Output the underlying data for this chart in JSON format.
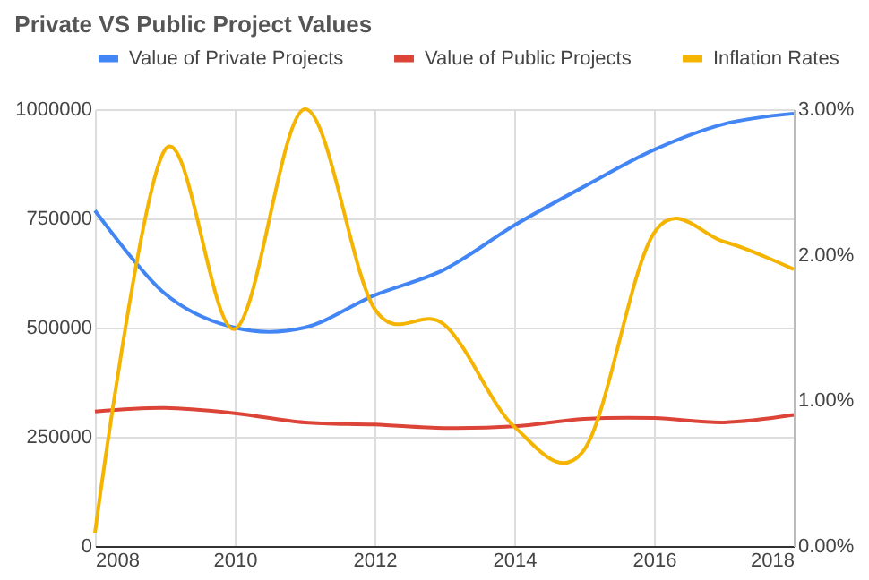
{
  "chart_data": {
    "type": "line",
    "title": "Private VS Public Project Values",
    "x": [
      2008,
      2009,
      2010,
      2011,
      2012,
      2013,
      2014,
      2015,
      2016,
      2017,
      2018
    ],
    "series": [
      {
        "name": "Value of Private Projects",
        "color": "#4285f4",
        "values": [
          768000,
          578000,
          500000,
          500000,
          574000,
          633000,
          734000,
          823000,
          907000,
          966000,
          990000
        ]
      },
      {
        "name": "Value of Public Projects",
        "color": "#db4437",
        "values": [
          308000,
          316000,
          304000,
          283000,
          278000,
          270000,
          274000,
          291000,
          293000,
          283000,
          300000
        ]
      },
      {
        "name": "Inflation Rates",
        "color": "#f4b400",
        "axis": "y2",
        "values": [
          0.09,
          2.72,
          1.49,
          3.0,
          1.63,
          1.52,
          0.82,
          0.66,
          2.15,
          2.09,
          1.9
        ]
      }
    ],
    "xlim": [
      2008,
      2018
    ],
    "xticks": [
      2008,
      2010,
      2012,
      2014,
      2016,
      2018
    ],
    "ylim": [
      0,
      1000000
    ],
    "yticks": [
      0,
      250000,
      500000,
      750000,
      1000000
    ],
    "y2lim": [
      0,
      3
    ],
    "y2ticks": [
      {
        "value": 0,
        "label": "0.00%"
      },
      {
        "value": 1,
        "label": "1.00%"
      },
      {
        "value": 2,
        "label": "2.00%"
      },
      {
        "value": 3,
        "label": "3.00%"
      }
    ],
    "grid": true,
    "legend": "top",
    "marker": "none",
    "line_style": "solid"
  }
}
